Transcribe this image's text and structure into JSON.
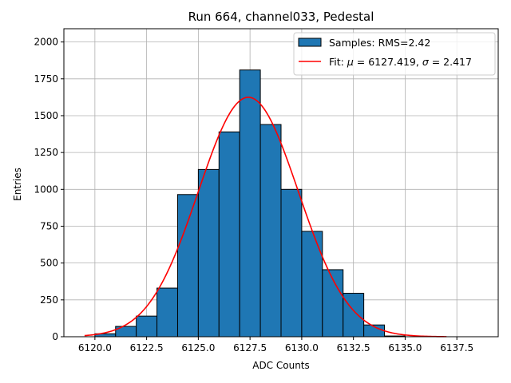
{
  "chart_data": {
    "type": "bar",
    "title": "Run 664, channel033, Pedestal",
    "xlabel": "ADC Counts",
    "ylabel": "Entries",
    "xlim": [
      6118.5,
      6139.5
    ],
    "ylim": [
      0,
      2090
    ],
    "xticks": [
      6120.0,
      6122.5,
      6125.0,
      6127.5,
      6130.0,
      6132.5,
      6135.0,
      6137.5
    ],
    "xtick_labels": [
      "6120.0",
      "6122.5",
      "6125.0",
      "6127.5",
      "6130.0",
      "6132.5",
      "6135.0",
      "6137.5"
    ],
    "yticks": [
      0,
      250,
      500,
      750,
      1000,
      1250,
      1500,
      1750,
      2000
    ],
    "ytick_labels": [
      "0",
      "250",
      "500",
      "750",
      "1000",
      "1250",
      "1500",
      "1750",
      "2000"
    ],
    "grid": true,
    "legend_position": "top-right",
    "histogram": {
      "name": "Samples: RMS=2.42",
      "color": "#1f77b4",
      "edge_color": "#000000",
      "bin_edges": [
        6120.0,
        6121.0,
        6122.0,
        6123.0,
        6124.0,
        6125.0,
        6126.0,
        6127.0,
        6128.0,
        6129.0,
        6130.0,
        6131.0,
        6132.0,
        6133.0,
        6134.0,
        6135.0
      ],
      "counts": [
        20,
        70,
        140,
        330,
        965,
        1135,
        1390,
        1810,
        1440,
        1000,
        715,
        455,
        295,
        80,
        5
      ]
    },
    "fit": {
      "name": "Fit: μ = 6127.419, σ = 2.417",
      "label_prefix": "Fit: ",
      "mu_symbol": "μ",
      "mu_text": " = 6127.419, ",
      "sigma_symbol": "σ",
      "sigma_text": " = 2.417",
      "color": "#ff0000",
      "mu": 6127.419,
      "sigma": 2.417,
      "amplitude": 1625,
      "x_range": [
        6119.5,
        6137.0
      ]
    }
  }
}
